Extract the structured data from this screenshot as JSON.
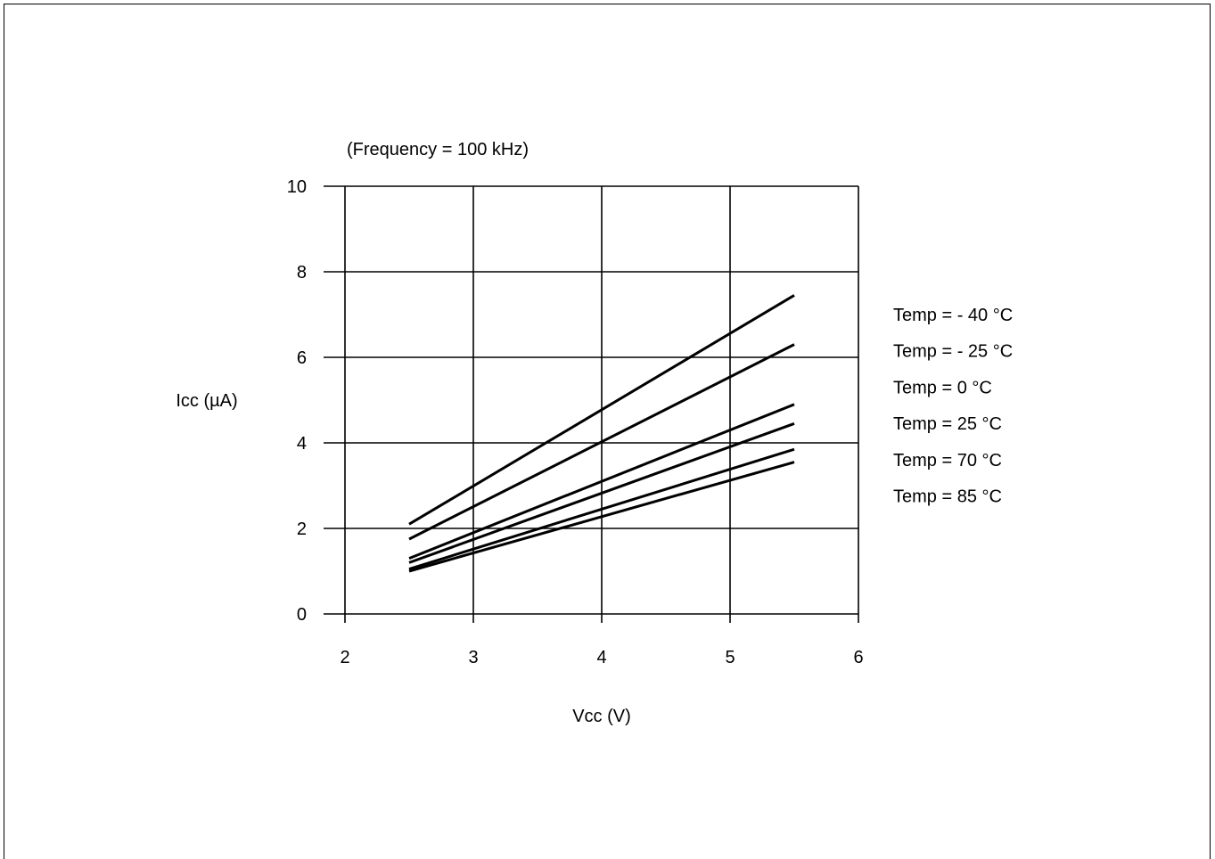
{
  "chart_data": {
    "type": "line",
    "annotation": "(Frequency = 100 kHz)",
    "xlabel": "Vcc (V)",
    "ylabel": "Icc (µA)",
    "xlim": [
      2,
      6
    ],
    "ylim": [
      0,
      10
    ],
    "x_ticks": [
      "2",
      "3",
      "4",
      "5",
      "6"
    ],
    "y_ticks": [
      "0",
      "2",
      "4",
      "6",
      "8",
      "10"
    ],
    "x_tick_values": [
      2,
      3,
      4,
      5,
      6
    ],
    "y_tick_values": [
      0,
      2,
      4,
      6,
      8,
      10
    ],
    "grid": true,
    "legend_position": "right",
    "series": [
      {
        "name": "Temp = - 40 °C",
        "x": [
          2.5,
          5.5
        ],
        "y": [
          2.1,
          7.45
        ]
      },
      {
        "name": "Temp = - 25 °C",
        "x": [
          2.5,
          5.5
        ],
        "y": [
          1.75,
          6.3
        ]
      },
      {
        "name": "Temp = 0 °C",
        "x": [
          2.5,
          5.5
        ],
        "y": [
          1.3,
          4.9
        ]
      },
      {
        "name": "Temp = 25 °C",
        "x": [
          2.5,
          5.5
        ],
        "y": [
          1.2,
          4.45
        ]
      },
      {
        "name": "Temp = 70 °C",
        "x": [
          2.5,
          5.5
        ],
        "y": [
          1.05,
          3.85
        ]
      },
      {
        "name": "Temp = 85 °C",
        "x": [
          2.5,
          5.5
        ],
        "y": [
          1.0,
          3.55
        ]
      }
    ]
  }
}
